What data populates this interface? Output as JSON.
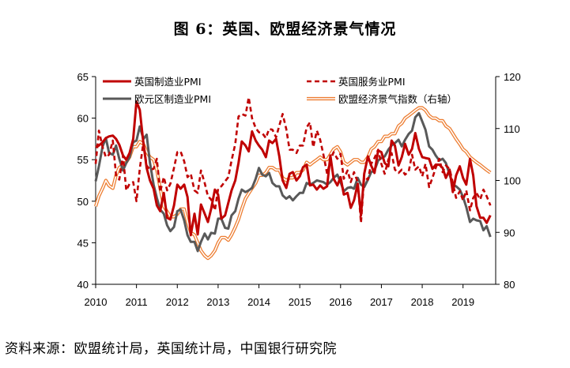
{
  "title": "图 6：英国、欧盟经济景气情况",
  "source": "资料来源：欧盟统计局，英国统计局，中国银行研究院",
  "chart_data": {
    "type": "line",
    "x_ticks": [
      "2010",
      "2011",
      "2012",
      "2013",
      "2014",
      "2015",
      "2016",
      "2017",
      "2018",
      "2019"
    ],
    "y_left": {
      "ticks": [
        40,
        45,
        50,
        55,
        60,
        65
      ],
      "range": [
        40,
        65
      ]
    },
    "y_right": {
      "ticks": [
        80,
        90,
        100,
        110,
        120
      ],
      "range": [
        80,
        120
      ]
    },
    "series": [
      {
        "name": "英国制造业PMI",
        "axis": "left",
        "color": "#c00000",
        "style": "solid",
        "x": [
          2010.0,
          2010.08,
          2010.17,
          2010.25,
          2010.33,
          2010.42,
          2010.5,
          2010.58,
          2010.67,
          2010.75,
          2010.83,
          2010.92,
          2011.0,
          2011.08,
          2011.17,
          2011.25,
          2011.33,
          2011.42,
          2011.5,
          2011.58,
          2011.67,
          2011.75,
          2011.83,
          2011.92,
          2012.0,
          2012.08,
          2012.17,
          2012.25,
          2012.33,
          2012.42,
          2012.5,
          2012.58,
          2012.67,
          2012.75,
          2012.83,
          2012.92,
          2013.0,
          2013.08,
          2013.17,
          2013.25,
          2013.33,
          2013.42,
          2013.5,
          2013.58,
          2013.67,
          2013.75,
          2013.83,
          2013.92,
          2014.0,
          2014.08,
          2014.17,
          2014.25,
          2014.33,
          2014.42,
          2014.5,
          2014.58,
          2014.67,
          2014.75,
          2014.83,
          2014.92,
          2015.0,
          2015.08,
          2015.17,
          2015.25,
          2015.33,
          2015.42,
          2015.5,
          2015.58,
          2015.67,
          2015.75,
          2015.83,
          2015.92,
          2016.0,
          2016.08,
          2016.17,
          2016.25,
          2016.33,
          2016.42,
          2016.5,
          2016.58,
          2016.67,
          2016.75,
          2016.83,
          2016.92,
          2017.0,
          2017.08,
          2017.17,
          2017.25,
          2017.33,
          2017.42,
          2017.5,
          2017.58,
          2017.67,
          2017.75,
          2017.83,
          2017.92,
          2018.0,
          2018.08,
          2018.17,
          2018.25,
          2018.33,
          2018.42,
          2018.5,
          2018.58,
          2018.67,
          2018.75,
          2018.83,
          2018.92,
          2019.0,
          2019.08,
          2019.17,
          2019.25,
          2019.33,
          2019.42,
          2019.5,
          2019.58,
          2019.67
        ],
        "y": [
          56.5,
          56.7,
          57.1,
          57.6,
          57.8,
          57.9,
          57.5,
          56.8,
          55.5,
          55.0,
          55.8,
          57.5,
          62.0,
          61.0,
          57.0,
          54.0,
          52.5,
          51.5,
          49.5,
          48.8,
          51.0,
          48.0,
          47.8,
          49.5,
          52.0,
          51.5,
          52.0,
          50.5,
          45.9,
          48.5,
          46.0,
          49.6,
          48.5,
          47.5,
          49.1,
          51.4,
          50.8,
          47.9,
          48.3,
          49.8,
          51.3,
          52.5,
          54.6,
          57.2,
          56.7,
          56.0,
          58.4,
          57.3,
          56.7,
          56.2,
          55.3,
          57.3,
          57.0,
          57.5,
          55.4,
          52.5,
          51.6,
          53.3,
          53.5,
          52.5,
          53.0,
          54.1,
          54.4,
          51.9,
          52.0,
          51.4,
          51.9,
          51.5,
          51.8,
          55.5,
          52.7,
          51.9,
          52.9,
          50.8,
          51.0,
          49.2,
          50.1,
          52.1,
          48.3,
          53.3,
          55.4,
          54.3,
          53.4,
          56.1,
          55.9,
          54.6,
          54.2,
          57.3,
          56.7,
          54.3,
          55.3,
          56.9,
          55.6,
          56.3,
          58.2,
          56.3,
          55.3,
          55.2,
          55.1,
          53.9,
          54.4,
          54.4,
          54.0,
          52.8,
          53.8,
          51.1,
          53.1,
          54.2,
          52.8,
          52.0,
          55.1,
          53.1,
          49.4,
          48.0,
          48.0,
          47.4,
          48.3
        ]
      },
      {
        "name": "英国服务业PMI",
        "axis": "left",
        "color": "#c00000",
        "style": "dashed",
        "x": [
          2010.0,
          2010.08,
          2010.17,
          2010.25,
          2010.33,
          2010.42,
          2010.5,
          2010.58,
          2010.67,
          2010.75,
          2010.83,
          2010.92,
          2011.0,
          2011.08,
          2011.17,
          2011.25,
          2011.33,
          2011.42,
          2011.5,
          2011.58,
          2011.67,
          2011.75,
          2011.83,
          2011.92,
          2012.0,
          2012.08,
          2012.17,
          2012.25,
          2012.33,
          2012.42,
          2012.5,
          2012.58,
          2012.67,
          2012.75,
          2012.83,
          2012.92,
          2013.0,
          2013.08,
          2013.17,
          2013.25,
          2013.33,
          2013.42,
          2013.5,
          2013.58,
          2013.67,
          2013.75,
          2013.83,
          2013.92,
          2014.0,
          2014.08,
          2014.17,
          2014.25,
          2014.33,
          2014.42,
          2014.5,
          2014.58,
          2014.67,
          2014.75,
          2014.83,
          2014.92,
          2015.0,
          2015.08,
          2015.17,
          2015.25,
          2015.33,
          2015.42,
          2015.5,
          2015.58,
          2015.67,
          2015.75,
          2015.83,
          2015.92,
          2016.0,
          2016.08,
          2016.17,
          2016.25,
          2016.33,
          2016.42,
          2016.5,
          2016.58,
          2016.67,
          2016.75,
          2016.83,
          2016.92,
          2017.0,
          2017.08,
          2017.17,
          2017.25,
          2017.33,
          2017.42,
          2017.5,
          2017.58,
          2017.67,
          2017.75,
          2017.83,
          2017.92,
          2018.0,
          2018.08,
          2018.17,
          2018.25,
          2018.33,
          2018.42,
          2018.5,
          2018.58,
          2018.67,
          2018.75,
          2018.83,
          2018.92,
          2019.0,
          2019.08,
          2019.17,
          2019.25,
          2019.33,
          2019.42,
          2019.5,
          2019.58,
          2019.67
        ],
        "y": [
          54.5,
          58.5,
          56.5,
          55.3,
          55.6,
          57.3,
          53.1,
          52.6,
          55.5,
          51.3,
          52.1,
          52.3,
          50.0,
          53.9,
          57.1,
          54.3,
          53.8,
          53.9,
          55.1,
          51.1,
          52.9,
          51.3,
          52.1,
          54.0,
          55.9,
          56.0,
          54.8,
          52.9,
          53.3,
          51.3,
          51.0,
          53.7,
          52.2,
          50.6,
          50.2,
          48.9,
          51.5,
          51.8,
          52.4,
          52.9,
          54.9,
          56.9,
          60.2,
          60.5,
          60.3,
          62.5,
          60.0,
          58.8,
          58.3,
          58.2,
          57.6,
          58.7,
          58.6,
          57.7,
          59.1,
          60.5,
          58.7,
          56.2,
          56.2,
          55.8,
          56.7,
          56.7,
          58.9,
          59.5,
          56.5,
          58.5,
          57.4,
          55.6,
          53.3,
          54.9,
          55.9,
          55.1,
          55.7,
          52.7,
          53.7,
          52.3,
          53.5,
          52.3,
          47.4,
          52.9,
          52.6,
          54.5,
          55.2,
          56.2,
          54.5,
          53.3,
          55.0,
          55.8,
          53.8,
          53.4,
          53.8,
          53.2,
          53.6,
          55.6,
          53.8,
          54.2,
          53.0,
          54.5,
          51.7,
          52.8,
          54.0,
          55.1,
          53.5,
          54.3,
          53.9,
          52.2,
          50.4,
          51.2,
          50.1,
          51.3,
          48.9,
          50.4,
          51.0,
          50.2,
          51.4,
          50.6,
          49.5
        ]
      },
      {
        "name": "欧元区制造业PMI",
        "axis": "left",
        "color": "#595959",
        "style": "solid",
        "x": [
          2010.0,
          2010.08,
          2010.17,
          2010.25,
          2010.33,
          2010.42,
          2010.5,
          2010.58,
          2010.67,
          2010.75,
          2010.83,
          2010.92,
          2011.0,
          2011.08,
          2011.17,
          2011.25,
          2011.33,
          2011.42,
          2011.5,
          2011.58,
          2011.67,
          2011.75,
          2011.83,
          2011.92,
          2012.0,
          2012.08,
          2012.17,
          2012.25,
          2012.33,
          2012.42,
          2012.5,
          2012.58,
          2012.67,
          2012.75,
          2012.83,
          2012.92,
          2013.0,
          2013.08,
          2013.17,
          2013.25,
          2013.33,
          2013.42,
          2013.5,
          2013.58,
          2013.67,
          2013.75,
          2013.83,
          2013.92,
          2014.0,
          2014.08,
          2014.17,
          2014.25,
          2014.33,
          2014.42,
          2014.5,
          2014.58,
          2014.67,
          2014.75,
          2014.83,
          2014.92,
          2015.0,
          2015.08,
          2015.17,
          2015.25,
          2015.33,
          2015.42,
          2015.5,
          2015.58,
          2015.67,
          2015.75,
          2015.83,
          2015.92,
          2016.0,
          2016.08,
          2016.17,
          2016.25,
          2016.33,
          2016.42,
          2016.5,
          2016.58,
          2016.67,
          2016.75,
          2016.83,
          2016.92,
          2017.0,
          2017.08,
          2017.17,
          2017.25,
          2017.33,
          2017.42,
          2017.5,
          2017.58,
          2017.67,
          2017.75,
          2017.83,
          2017.92,
          2018.0,
          2018.08,
          2018.17,
          2018.25,
          2018.33,
          2018.42,
          2018.5,
          2018.58,
          2018.67,
          2018.75,
          2018.83,
          2018.92,
          2019.0,
          2019.08,
          2019.17,
          2019.25,
          2019.33,
          2019.42,
          2019.5,
          2019.58,
          2019.67
        ],
        "y": [
          52.4,
          54.2,
          56.6,
          57.6,
          55.8,
          55.6,
          56.7,
          55.1,
          53.7,
          54.6,
          55.3,
          57.1,
          57.3,
          59.0,
          57.5,
          58.0,
          54.6,
          52.0,
          50.4,
          49.0,
          48.5,
          47.1,
          46.4,
          46.9,
          48.8,
          49.0,
          47.7,
          45.9,
          45.1,
          45.1,
          44.0,
          45.1,
          46.1,
          45.4,
          46.2,
          46.1,
          47.9,
          47.9,
          46.8,
          46.7,
          48.3,
          48.8,
          50.3,
          51.4,
          51.1,
          51.3,
          51.6,
          52.7,
          54.0,
          53.2,
          53.0,
          53.4,
          52.2,
          51.8,
          51.8,
          50.7,
          50.3,
          50.6,
          50.1,
          50.6,
          51.0,
          51.0,
          52.2,
          52.0,
          52.2,
          52.5,
          52.4,
          52.3,
          52.0,
          52.3,
          52.8,
          53.2,
          52.3,
          51.2,
          51.6,
          51.7,
          51.5,
          52.8,
          52.0,
          51.7,
          52.6,
          53.5,
          53.7,
          54.9,
          55.2,
          55.4,
          56.2,
          56.7,
          57.0,
          57.4,
          56.6,
          57.4,
          58.1,
          58.5,
          60.1,
          60.6,
          59.6,
          58.6,
          56.6,
          56.2,
          55.5,
          54.9,
          55.1,
          54.6,
          53.2,
          52.0,
          51.8,
          51.4,
          50.5,
          49.3,
          47.5,
          47.9,
          47.7,
          47.6,
          46.5,
          47.0,
          45.7
        ]
      },
      {
        "name": "欧盟经济景气指数（右轴）",
        "axis": "right",
        "color": "#ed7d31",
        "style": "double",
        "x": [
          2010.0,
          2010.08,
          2010.17,
          2010.25,
          2010.33,
          2010.42,
          2010.5,
          2010.58,
          2010.67,
          2010.75,
          2010.83,
          2010.92,
          2011.0,
          2011.08,
          2011.17,
          2011.25,
          2011.33,
          2011.42,
          2011.5,
          2011.58,
          2011.67,
          2011.75,
          2011.83,
          2011.92,
          2012.0,
          2012.08,
          2012.17,
          2012.25,
          2012.33,
          2012.42,
          2012.5,
          2012.58,
          2012.67,
          2012.75,
          2012.83,
          2012.92,
          2013.0,
          2013.08,
          2013.17,
          2013.25,
          2013.33,
          2013.42,
          2013.5,
          2013.58,
          2013.67,
          2013.75,
          2013.83,
          2013.92,
          2014.0,
          2014.08,
          2014.17,
          2014.25,
          2014.33,
          2014.42,
          2014.5,
          2014.58,
          2014.67,
          2014.75,
          2014.83,
          2014.92,
          2015.0,
          2015.08,
          2015.17,
          2015.25,
          2015.33,
          2015.42,
          2015.5,
          2015.58,
          2015.67,
          2015.75,
          2015.83,
          2015.92,
          2016.0,
          2016.08,
          2016.17,
          2016.25,
          2016.33,
          2016.42,
          2016.5,
          2016.58,
          2016.67,
          2016.75,
          2016.83,
          2016.92,
          2017.0,
          2017.08,
          2017.17,
          2017.25,
          2017.33,
          2017.42,
          2017.5,
          2017.58,
          2017.67,
          2017.75,
          2017.83,
          2017.92,
          2018.0,
          2018.08,
          2018.17,
          2018.25,
          2018.33,
          2018.42,
          2018.5,
          2018.58,
          2018.67,
          2018.75,
          2018.83,
          2018.92,
          2019.0,
          2019.08,
          2019.17,
          2019.25,
          2019.33,
          2019.42,
          2019.5,
          2019.58,
          2019.67
        ],
        "y": [
          95.0,
          97.0,
          98.5,
          100.0,
          99.0,
          98.5,
          101.0,
          102.5,
          103.0,
          103.5,
          104.5,
          106.5,
          106.5,
          107.5,
          107.0,
          105.5,
          104.5,
          104.0,
          102.0,
          98.5,
          95.0,
          94.0,
          93.0,
          93.0,
          93.5,
          94.5,
          94.5,
          92.0,
          90.0,
          89.5,
          88.0,
          86.5,
          85.5,
          85.0,
          85.5,
          86.5,
          88.0,
          89.0,
          89.0,
          88.5,
          89.5,
          91.0,
          92.5,
          94.5,
          96.5,
          97.5,
          98.5,
          99.5,
          101.0,
          101.0,
          101.5,
          102.5,
          102.5,
          102.0,
          102.0,
          100.5,
          100.0,
          100.5,
          100.5,
          101.5,
          101.5,
          102.0,
          103.5,
          103.0,
          103.5,
          104.0,
          104.5,
          104.0,
          104.0,
          105.0,
          106.0,
          106.5,
          105.5,
          103.5,
          103.0,
          103.5,
          104.0,
          104.0,
          103.5,
          103.5,
          104.5,
          106.0,
          106.5,
          107.5,
          107.5,
          108.5,
          108.5,
          109.0,
          109.0,
          110.5,
          111.0,
          112.0,
          112.5,
          113.0,
          113.5,
          114.0,
          114.0,
          113.5,
          112.5,
          112.0,
          112.0,
          111.5,
          111.5,
          110.5,
          110.0,
          109.0,
          108.0,
          107.0,
          106.0,
          105.5,
          104.5,
          104.0,
          103.5,
          103.0,
          102.5,
          102.0,
          101.5
        ]
      }
    ]
  }
}
